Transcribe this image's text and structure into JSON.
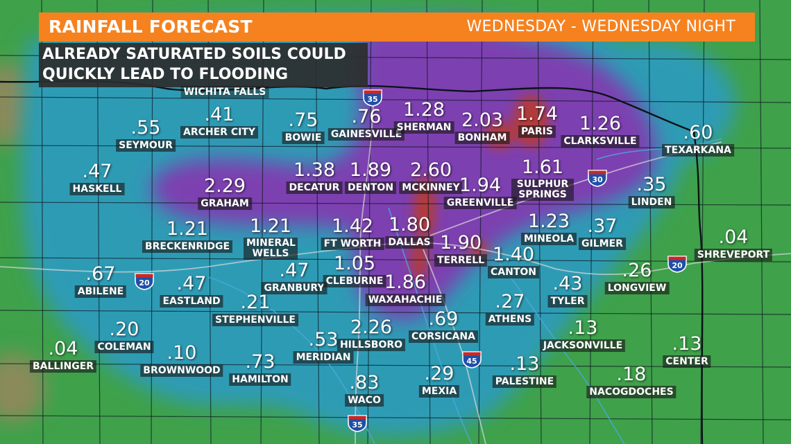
{
  "header": {
    "title": "RAINFALL FORECAST",
    "period": "WEDNESDAY - WEDNESDAY NIGHT"
  },
  "subtitle": {
    "line1": "ALREADY SATURATED SOILS COULD",
    "line2": "QUICKLY LEAD TO FLOODING"
  },
  "colors": {
    "header_bar": "#f5821f",
    "subtitle_box": "#2d2d2d",
    "light_rain": "#3fa14a",
    "moderate_rain": "#2e9bb5",
    "heavy_rain": "#7d3fb0",
    "very_heavy_rain": "#b23a3a",
    "interstate_shield": "#1f4fa8"
  },
  "region_label": {
    "name": "WICHITA FALLS"
  },
  "locations": [
    {
      "name": "ARCHER CITY",
      "amount": ".41"
    },
    {
      "name": "BOWIE",
      "amount": ".75"
    },
    {
      "name": "GAINESVILLE",
      "amount": ".76"
    },
    {
      "name": "SHERMAN",
      "amount": "1.28"
    },
    {
      "name": "BONHAM",
      "amount": "2.03"
    },
    {
      "name": "PARIS",
      "amount": "1.74"
    },
    {
      "name": "CLARKSVILLE",
      "amount": "1.26"
    },
    {
      "name": "TEXARKANA",
      "amount": ".60"
    },
    {
      "name": "SEYMOUR",
      "amount": ".55"
    },
    {
      "name": "HASKELL",
      "amount": ".47"
    },
    {
      "name": "GRAHAM",
      "amount": "2.29"
    },
    {
      "name": "DECATUR",
      "amount": "1.38"
    },
    {
      "name": "DENTON",
      "amount": "1.89"
    },
    {
      "name": "MCKINNEY",
      "amount": "2.60"
    },
    {
      "name": "GREENVILLE",
      "amount": "1.94"
    },
    {
      "name": "SULPHUR SPRINGS",
      "amount": "1.61"
    },
    {
      "name": "LINDEN",
      "amount": ".35"
    },
    {
      "name": "BRECKENRIDGE",
      "amount": "1.21"
    },
    {
      "name": "MINERAL WELLS",
      "amount": "1.21"
    },
    {
      "name": "FT WORTH",
      "amount": "1.42"
    },
    {
      "name": "DALLAS",
      "amount": "1.80"
    },
    {
      "name": "MINEOLA",
      "amount": "1.23"
    },
    {
      "name": "GILMER",
      "amount": ".37"
    },
    {
      "name": "SHREVEPORT",
      "amount": ".04"
    },
    {
      "name": "TERRELL",
      "amount": "1.90"
    },
    {
      "name": "CANTON",
      "amount": "1.40"
    },
    {
      "name": "ABILENE",
      "amount": ".67"
    },
    {
      "name": "EASTLAND",
      "amount": ".47"
    },
    {
      "name": "GRANBURY",
      "amount": ".47"
    },
    {
      "name": "CLEBURNE",
      "amount": "1.05"
    },
    {
      "name": "WAXAHACHIE",
      "amount": "1.86"
    },
    {
      "name": "LONGVIEW",
      "amount": ".26"
    },
    {
      "name": "TYLER",
      "amount": ".43"
    },
    {
      "name": "STEPHENVILLE",
      "amount": ".21"
    },
    {
      "name": "ATHENS",
      "amount": ".27"
    },
    {
      "name": "COLEMAN",
      "amount": ".20"
    },
    {
      "name": "HILLSBORO",
      "amount": "2.26"
    },
    {
      "name": "CORSICANA",
      "amount": ".69"
    },
    {
      "name": "JACKSONVILLE",
      "amount": ".13"
    },
    {
      "name": "CENTER",
      "amount": ".13"
    },
    {
      "name": "BALLINGER",
      "amount": ".04"
    },
    {
      "name": "BROWNWOOD",
      "amount": ".10"
    },
    {
      "name": "MERIDIAN",
      "amount": ".53"
    },
    {
      "name": "HAMILTON",
      "amount": ".73"
    },
    {
      "name": "PALESTINE",
      "amount": ".13"
    },
    {
      "name": "NACOGDOCHES",
      "amount": ".18"
    },
    {
      "name": "MEXIA",
      "amount": ".29"
    },
    {
      "name": "WACO",
      "amount": ".83"
    }
  ],
  "interstates": [
    {
      "label": "35",
      "name": "interstate-35-north-shield"
    },
    {
      "label": "30",
      "name": "interstate-30-shield"
    },
    {
      "label": "20",
      "name": "interstate-20-west-shield"
    },
    {
      "label": "20",
      "name": "interstate-20-east-shield"
    },
    {
      "label": "45",
      "name": "interstate-45-shield"
    },
    {
      "label": "35",
      "name": "interstate-35-south-shield"
    }
  ]
}
